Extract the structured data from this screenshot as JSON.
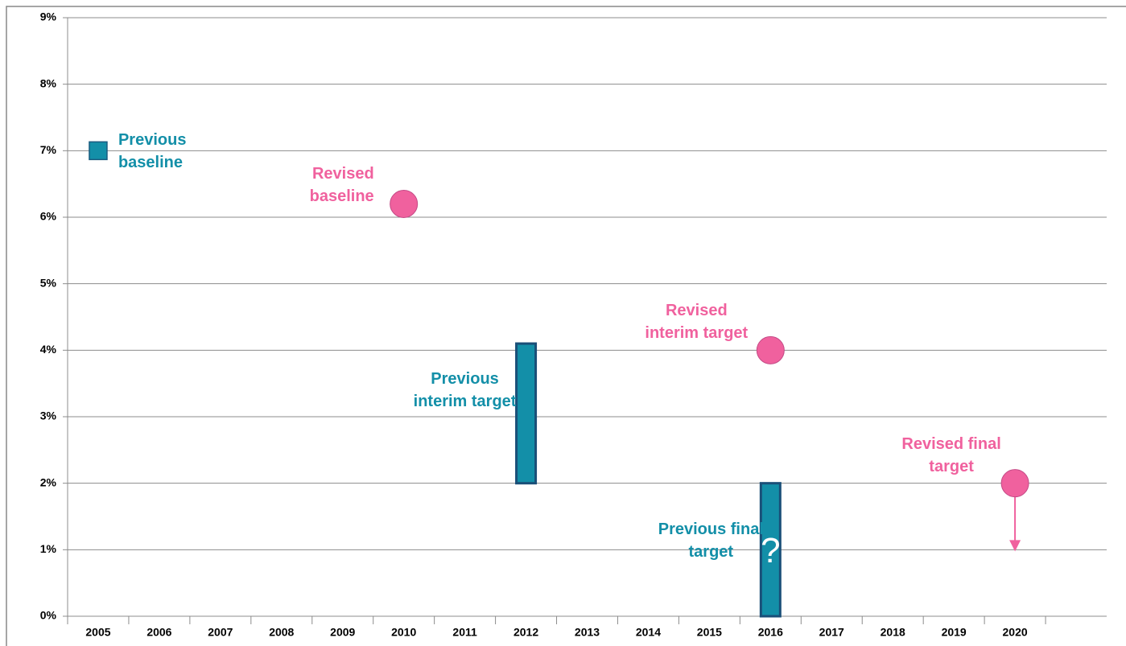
{
  "chart_data": {
    "type": "target-chart",
    "categories": [
      "2005",
      "2006",
      "2007",
      "2008",
      "2009",
      "2010",
      "2011",
      "2012",
      "2013",
      "2014",
      "2015",
      "2016",
      "2017",
      "2018",
      "2019",
      "2020",
      null
    ],
    "ylim": [
      0,
      9
    ],
    "yticks": [
      {
        "value": 0,
        "label": "0%"
      },
      {
        "value": 1,
        "label": "1%"
      },
      {
        "value": 2,
        "label": "2%"
      },
      {
        "value": 3,
        "label": "3%"
      },
      {
        "value": 4,
        "label": "4%"
      },
      {
        "value": 5,
        "label": "5%"
      },
      {
        "value": 6,
        "label": "6%"
      },
      {
        "value": 7,
        "label": "7%"
      },
      {
        "value": 8,
        "label": "8%"
      },
      {
        "value": 9,
        "label": "9%"
      }
    ],
    "grid": true,
    "marks": [
      {
        "name": "Previous baseline",
        "color": "#138fa8",
        "shape": "square",
        "category": "2005",
        "value": 7
      },
      {
        "name": "Revised baseline",
        "color": "#f0619e",
        "shape": "circle",
        "category": "2010",
        "value": 6.2
      },
      {
        "name": "Previous interim target",
        "color": "#138fa8",
        "shape": "bar",
        "category": "2012",
        "low": 2,
        "high": 4.1
      },
      {
        "name": "Revised interim target",
        "color": "#f0619e",
        "shape": "circle",
        "category": "2016",
        "value": 4
      },
      {
        "name": "Previous final target",
        "color": "#138fa8",
        "shape": "bar",
        "category": "2016",
        "low": 0,
        "high": 2,
        "annotation": "?"
      },
      {
        "name": "Revised final target",
        "color": "#f0619e",
        "shape": "circle",
        "category": "2020",
        "value": 2,
        "arrow_to": 1
      }
    ]
  }
}
